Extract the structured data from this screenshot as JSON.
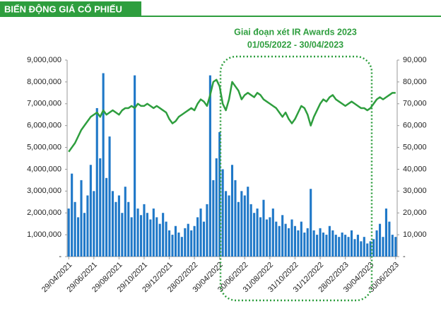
{
  "chart_data": {
    "type": "bar_line",
    "title": "BIẾN ĐỘNG GIÁ CỔ PHIẾU",
    "annotations": [
      "Giai đoạn xét IR Awards 2023",
      "01/05/2022 - 30/04/2023"
    ],
    "categories": [
      "29/04/2021",
      null,
      null,
      null,
      null,
      null,
      null,
      null,
      "29/06/2021",
      null,
      null,
      null,
      null,
      null,
      null,
      null,
      "29/08/2021",
      null,
      null,
      null,
      null,
      null,
      null,
      null,
      "29/10/2021",
      null,
      null,
      null,
      null,
      null,
      null,
      null,
      "29/12/2021",
      null,
      null,
      null,
      null,
      null,
      null,
      null,
      "28/02/2022",
      null,
      null,
      null,
      null,
      null,
      null,
      null,
      "30/04/2022",
      null,
      null,
      null,
      null,
      null,
      null,
      null,
      "30/06/2022",
      null,
      null,
      null,
      null,
      null,
      null,
      null,
      "31/08/2022",
      null,
      null,
      null,
      null,
      null,
      null,
      null,
      "31/10/2022",
      null,
      null,
      null,
      null,
      null,
      null,
      null,
      "31/12/2022",
      null,
      null,
      null,
      null,
      null,
      null,
      null,
      "28/02/2023",
      null,
      null,
      null,
      null,
      null,
      null,
      null,
      "30/04/2023",
      null,
      null,
      null,
      null,
      null,
      null,
      null,
      "30/06/2023"
    ],
    "series": [
      {
        "kind": "bar",
        "color": "#1f78c8",
        "values": [
          2200000,
          3800000,
          2500000,
          1800000,
          3500000,
          2000000,
          2800000,
          4200000,
          3000000,
          6800000,
          4500000,
          8400000,
          3600000,
          5500000,
          3000000,
          2500000,
          2800000,
          2000000,
          3200000,
          2500000,
          1800000,
          8300000,
          2200000,
          1900000,
          2400000,
          2000000,
          1700000,
          2200000,
          1800000,
          1500000,
          2000000,
          1600000,
          1200000,
          1000000,
          1400000,
          1100000,
          900000,
          1300000,
          1500000,
          1200000,
          1400000,
          1800000,
          2200000,
          1600000,
          2400000,
          8300000,
          3500000,
          4500000,
          5700000,
          4000000,
          3000000,
          2800000,
          4200000,
          3500000,
          2500000,
          3000000,
          2800000,
          3200000,
          2400000,
          2000000,
          2200000,
          1800000,
          2600000,
          1700000,
          1800000,
          2200000,
          1600000,
          1400000,
          1900000,
          1500000,
          1300000,
          1700000,
          1400000,
          1200000,
          1600000,
          1100000,
          1300000,
          3100000,
          1200000,
          1000000,
          1300000,
          1100000,
          1000000,
          1400000,
          1200000,
          1000000,
          900000,
          1100000,
          1000000,
          900000,
          1200000,
          800000,
          1000000,
          700000,
          900000,
          600000,
          700000,
          800000,
          1200000,
          1500000,
          900000,
          2200000,
          1600000,
          1000000,
          900000
        ]
      },
      {
        "kind": "line",
        "axis": "y2",
        "color": "#2e9e3e",
        "values": [
          48000,
          50000,
          52000,
          55000,
          58000,
          60000,
          62000,
          64000,
          65000,
          66000,
          64000,
          67000,
          65000,
          66000,
          67000,
          66000,
          65000,
          67000,
          68000,
          68000,
          69000,
          68000,
          70000,
          69000,
          69000,
          70000,
          69000,
          68000,
          69000,
          68000,
          67000,
          66000,
          63000,
          61000,
          62000,
          64000,
          65000,
          66000,
          67000,
          68000,
          67000,
          70000,
          72000,
          71000,
          69000,
          74000,
          80000,
          81000,
          78000,
          70000,
          67000,
          72000,
          80000,
          78000,
          76000,
          72000,
          74000,
          75000,
          74000,
          73000,
          75000,
          74000,
          72000,
          71000,
          70000,
          69000,
          68000,
          66000,
          64000,
          66000,
          63000,
          61000,
          63000,
          66000,
          69000,
          68000,
          65000,
          60000,
          64000,
          67000,
          70000,
          72000,
          71000,
          73000,
          74000,
          72000,
          71000,
          70000,
          69000,
          70000,
          71000,
          70000,
          69000,
          68000,
          68000,
          67000,
          68000,
          70000,
          72000,
          73000,
          72000,
          73000,
          74000,
          75000,
          75000
        ]
      }
    ],
    "ylim": [
      0,
      9000000
    ],
    "yticks": [
      {
        "value": 0,
        "label": "-"
      },
      {
        "value": 1000000,
        "label": "1,000,000"
      },
      {
        "value": 2000000,
        "label": "2,000,000"
      },
      {
        "value": 3000000,
        "label": "3,000,000"
      },
      {
        "value": 4000000,
        "label": "4,000,000"
      },
      {
        "value": 5000000,
        "label": "5,000,000"
      },
      {
        "value": 6000000,
        "label": "6,000,000"
      },
      {
        "value": 7000000,
        "label": "7,000,000"
      },
      {
        "value": 8000000,
        "label": "8,000,000"
      },
      {
        "value": 9000000,
        "label": "9,000,000"
      }
    ],
    "y2lim": [
      0,
      90000
    ],
    "y2ticks": [
      {
        "value": 0,
        "label": "-"
      },
      {
        "value": 10000,
        "label": "10,000"
      },
      {
        "value": 20000,
        "label": "20,000"
      },
      {
        "value": 30000,
        "label": "30,000"
      },
      {
        "value": 40000,
        "label": "40,000"
      },
      {
        "value": 50000,
        "label": "50,000"
      },
      {
        "value": 60000,
        "label": "60,000"
      },
      {
        "value": 70000,
        "label": "70,000"
      },
      {
        "value": 80000,
        "label": "80,000"
      },
      {
        "value": 90000,
        "label": "90,000"
      }
    ]
  }
}
